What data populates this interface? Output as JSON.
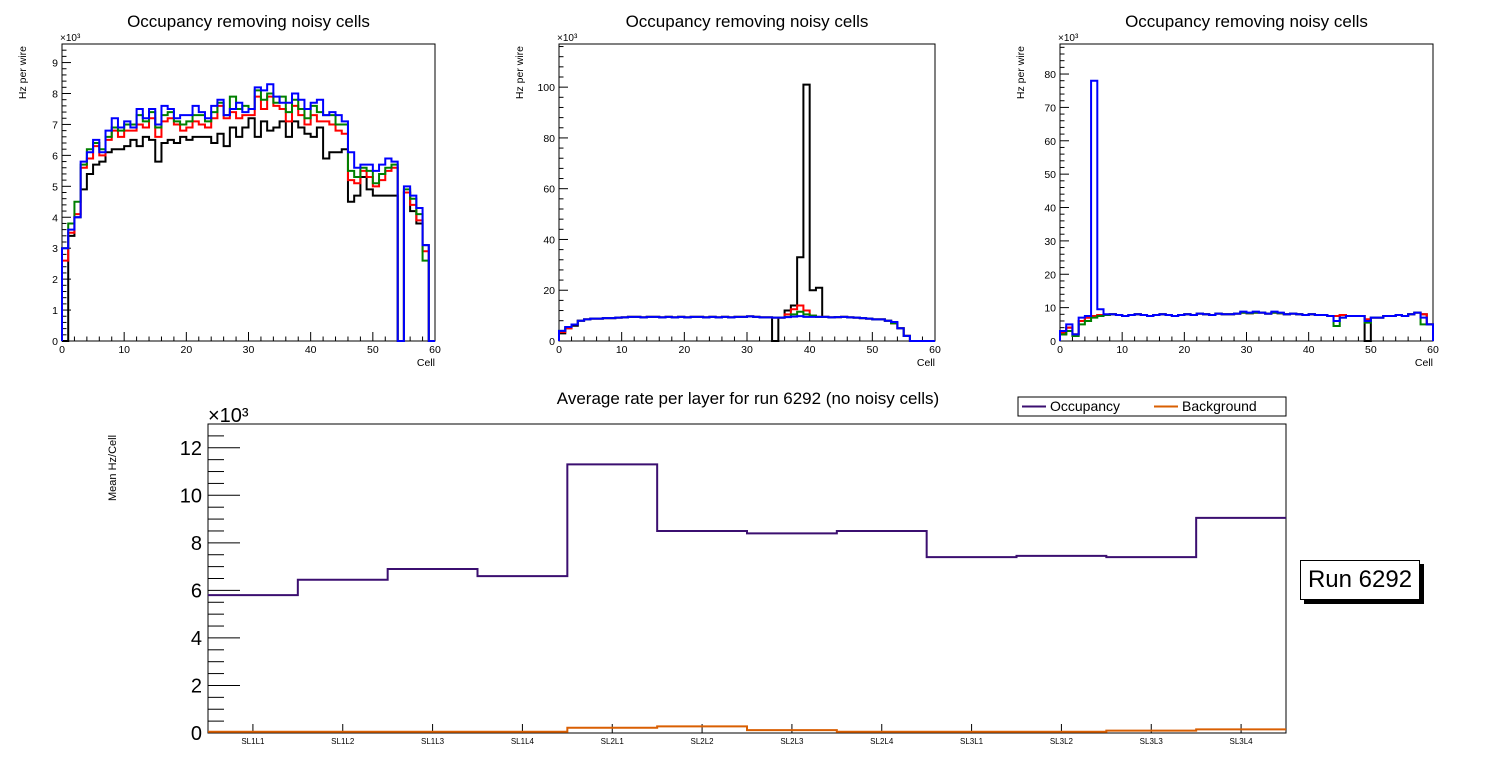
{
  "chart_data": [
    {
      "type": "step",
      "title": "Occupancy removing noisy cells",
      "xlabel": "Cell",
      "ylabel": "Hz per wire",
      "multiplier": "×10³",
      "xlim": [
        0,
        60
      ],
      "ylim": [
        0,
        9.6
      ],
      "xticks": [
        "0",
        "10",
        "20",
        "30",
        "40",
        "50",
        "60"
      ],
      "yticks": [
        "0",
        "1",
        "2",
        "3",
        "4",
        "5",
        "6",
        "7",
        "8",
        "9"
      ],
      "series": [
        {
          "name": "black",
          "color": "#000000",
          "values": [
            0,
            3.4,
            4,
            4.9,
            5.4,
            5.7,
            5.8,
            6.1,
            6.2,
            6.2,
            6.3,
            6.5,
            6.3,
            6.6,
            6.5,
            5.8,
            6.4,
            6.5,
            6.4,
            6.6,
            6.5,
            6.6,
            6.6,
            6.6,
            6.4,
            6.7,
            6.3,
            6.9,
            6.6,
            6.9,
            7.2,
            6.6,
            7.1,
            6.8,
            6.9,
            7.1,
            6.6,
            7.1,
            6.9,
            6.7,
            6.6,
            6.9,
            5.9,
            6.1,
            6.1,
            6.2,
            4.5,
            4.7,
            5.3,
            4.9,
            4.7,
            4.7,
            4.7,
            4.7,
            0,
            4.8,
            4.2,
            3.8,
            3.1,
            0
          ]
        },
        {
          "name": "red",
          "color": "#ff0000",
          "values": [
            2.6,
            3.5,
            4.1,
            5.6,
            5.9,
            6.3,
            6.0,
            6.5,
            6.8,
            6.6,
            6.8,
            6.8,
            7.0,
            6.9,
            7.2,
            6.6,
            7.1,
            7.2,
            7.0,
            6.8,
            6.9,
            7.1,
            7.0,
            6.9,
            7.2,
            7.6,
            7.2,
            7.4,
            7.2,
            7.3,
            7.3,
            7.9,
            7.5,
            7.9,
            7.6,
            7.5,
            7.1,
            7.6,
            7.3,
            7.0,
            7.3,
            7.1,
            7.1,
            7.0,
            6.8,
            6.7,
            5.2,
            5.1,
            5.5,
            5.3,
            5.0,
            5.2,
            5.5,
            5.6,
            0,
            4.8,
            4.4,
            3.9,
            2.9,
            0
          ]
        },
        {
          "name": "green",
          "color": "#008000",
          "values": [
            3.0,
            3.8,
            4.5,
            5.7,
            6.2,
            6.4,
            6.2,
            6.6,
            6.9,
            6.8,
            7.0,
            7.0,
            7.3,
            7.1,
            7.4,
            6.9,
            7.3,
            7.4,
            7.1,
            7.0,
            7.1,
            7.3,
            7.3,
            7.1,
            7.4,
            7.7,
            7.3,
            7.9,
            7.5,
            7.6,
            7.5,
            8.1,
            7.8,
            8.0,
            7.7,
            7.9,
            7.4,
            7.8,
            7.5,
            7.2,
            7.6,
            7.4,
            7.3,
            7.3,
            7.0,
            7.0,
            5.5,
            5.3,
            5.6,
            5.5,
            5.1,
            5.4,
            5.6,
            5.7,
            0,
            4.9,
            4.6,
            4.1,
            2.6,
            0
          ]
        },
        {
          "name": "blue",
          "color": "#0000ff",
          "values": [
            3.0,
            3.6,
            4.0,
            5.8,
            6.1,
            6.5,
            6.1,
            6.8,
            7.2,
            6.9,
            7.1,
            6.9,
            7.5,
            7.2,
            7.5,
            7.0,
            7.6,
            7.5,
            7.2,
            7.3,
            7.3,
            7.6,
            7.4,
            7.2,
            7.6,
            7.8,
            7.3,
            7.5,
            7.7,
            7.4,
            7.5,
            8.2,
            8.1,
            8.3,
            7.9,
            7.7,
            7.7,
            8.0,
            7.8,
            7.5,
            7.7,
            7.8,
            7.3,
            7.4,
            7.3,
            7.1,
            6.1,
            5.6,
            5.7,
            5.7,
            5.5,
            5.7,
            5.9,
            5.8,
            0,
            5.0,
            4.7,
            4.3,
            3.1,
            0
          ]
        }
      ]
    },
    {
      "type": "step",
      "title": "Occupancy removing noisy cells",
      "xlabel": "Cell",
      "ylabel": "Hz per wire",
      "multiplier": "×10³",
      "xlim": [
        0,
        60
      ],
      "ylim": [
        0,
        117
      ],
      "xticks": [
        "0",
        "10",
        "20",
        "30",
        "40",
        "50",
        "60"
      ],
      "yticks": [
        "0",
        "20",
        "40",
        "60",
        "80",
        "100"
      ],
      "series": [
        {
          "name": "black",
          "color": "#000000",
          "values": [
            3,
            5,
            6,
            8,
            8.5,
            8.8,
            8.8,
            9,
            9,
            9.2,
            9.3,
            9.5,
            9.5,
            9.3,
            9.5,
            9.5,
            9.3,
            9.5,
            9.3,
            9.5,
            9.3,
            9.5,
            9.5,
            9.3,
            9.5,
            9.3,
            9.5,
            9.3,
            9.5,
            9.5,
            9.7,
            9.5,
            9.3,
            9.3,
            0,
            9.2,
            12,
            14,
            33,
            101,
            20,
            21,
            9.5,
            9.3,
            9.4,
            9.5,
            9.3,
            9.2,
            9.0,
            8.8,
            8.5,
            8.5,
            8,
            7,
            5,
            2,
            0,
            0,
            0,
            0
          ]
        },
        {
          "name": "red",
          "color": "#ff0000",
          "values": [
            3.5,
            5,
            6.5,
            8,
            8.5,
            8.8,
            8.8,
            9,
            9,
            9.2,
            9.3,
            9.5,
            9.5,
            9.3,
            9.5,
            9.5,
            9.3,
            9.5,
            9.3,
            9.5,
            9.3,
            9.5,
            9.5,
            9.3,
            9.5,
            9.3,
            9.5,
            9.3,
            9.5,
            9.5,
            9.7,
            9.5,
            9.3,
            9.3,
            9.2,
            9.2,
            10.5,
            12.5,
            14,
            12,
            10,
            9.5,
            9.5,
            9.3,
            9.4,
            9.5,
            9.3,
            9.2,
            9.0,
            8.8,
            8.5,
            8.5,
            8,
            7,
            5,
            2,
            0,
            0,
            0,
            0
          ]
        },
        {
          "name": "green",
          "color": "#008000",
          "values": [
            4,
            5.5,
            6.5,
            8,
            8.5,
            8.8,
            8.8,
            9,
            9,
            9.2,
            9.3,
            9.5,
            9.5,
            9.3,
            9.5,
            9.5,
            9.3,
            9.5,
            9.3,
            9.5,
            9.3,
            9.5,
            9.5,
            9.3,
            9.5,
            9.3,
            9.5,
            9.3,
            9.5,
            9.5,
            9.7,
            9.5,
            9.3,
            9.3,
            9.2,
            9.2,
            9.5,
            10.5,
            11.5,
            10.5,
            10,
            9.5,
            9.5,
            9.3,
            9.4,
            9.5,
            9.3,
            9.2,
            9.0,
            8.8,
            8.5,
            8.5,
            8,
            7,
            5,
            2,
            0,
            0,
            0,
            0
          ]
        },
        {
          "name": "blue",
          "color": "#0000ff",
          "values": [
            4,
            5.5,
            6.5,
            8,
            8.5,
            8.8,
            8.8,
            9,
            9,
            9.2,
            9.3,
            9.5,
            9.5,
            9.3,
            9.5,
            9.5,
            9.3,
            9.5,
            9.3,
            9.5,
            9.3,
            9.5,
            9.5,
            9.3,
            9.5,
            9.3,
            9.5,
            9.3,
            9.5,
            9.5,
            9.7,
            9.5,
            9.3,
            9.3,
            9.2,
            9.2,
            9.4,
            9.6,
            9.8,
            9.5,
            9.5,
            9.5,
            9.5,
            9.3,
            9.4,
            9.5,
            9.3,
            9.2,
            9.0,
            8.8,
            8.5,
            8.5,
            8,
            7.5,
            5,
            2,
            0,
            0,
            0,
            0
          ]
        }
      ]
    },
    {
      "type": "step",
      "title": "Occupancy removing noisy cells",
      "xlabel": "Cell",
      "ylabel": "Hz per wire",
      "multiplier": "×10³",
      "xlim": [
        0,
        60
      ],
      "ylim": [
        0,
        89
      ],
      "xticks": [
        "0",
        "10",
        "20",
        "30",
        "40",
        "50",
        "60"
      ],
      "yticks": [
        "0",
        "10",
        "20",
        "30",
        "40",
        "50",
        "60",
        "70",
        "80"
      ],
      "series": [
        {
          "name": "black",
          "color": "#000000",
          "values": [
            2,
            4,
            2,
            6,
            7,
            7.5,
            7.8,
            7.8,
            8,
            7.8,
            7.5,
            7.8,
            8,
            7.8,
            7.5,
            7.8,
            8,
            7.8,
            7.5,
            7.8,
            8,
            7.8,
            8.2,
            8,
            7.8,
            8.2,
            8,
            8,
            8.2,
            8.5,
            8.3,
            8.5,
            8.5,
            8.2,
            8.5,
            8.3,
            8,
            8.2,
            8,
            7.8,
            8,
            7.8,
            7.8,
            7.5,
            7.5,
            7.8,
            7.5,
            7.5,
            7.5,
            0,
            7,
            7,
            7.5,
            7.5,
            7.8,
            7.5,
            8,
            8.5,
            8,
            5
          ]
        },
        {
          "name": "red",
          "color": "#ff0000",
          "values": [
            2.5,
            4,
            2,
            6,
            7,
            7.5,
            7.8,
            7.8,
            8,
            7.8,
            7.5,
            7.8,
            8,
            7.8,
            7.5,
            7.8,
            8,
            7.8,
            7.5,
            7.8,
            8,
            7.8,
            8.2,
            8,
            7.8,
            8.2,
            8,
            8,
            8.2,
            8.5,
            8.3,
            8.5,
            8.5,
            8.2,
            8.5,
            8.3,
            8,
            8.2,
            8,
            7.8,
            8,
            7.8,
            7.8,
            7.5,
            7.5,
            7.8,
            7.5,
            7.5,
            7.5,
            6.5,
            7,
            7,
            7.5,
            7.5,
            7.8,
            7.5,
            8,
            8.5,
            8,
            5
          ]
        },
        {
          "name": "green",
          "color": "#008000",
          "values": [
            2,
            3,
            1.5,
            5,
            6,
            7,
            7.5,
            7.8,
            8,
            7.8,
            7.5,
            7.8,
            8,
            7.8,
            7.5,
            7.8,
            8,
            7.8,
            7.5,
            7.8,
            8,
            7.8,
            8.2,
            8,
            7.8,
            8.2,
            8,
            8,
            8.2,
            8.5,
            8.3,
            8.5,
            8.5,
            8.2,
            8.5,
            8.3,
            8,
            8.2,
            8,
            7.8,
            8,
            7.8,
            7.8,
            7.5,
            4.5,
            7,
            7.5,
            7.5,
            7.5,
            5.5,
            7,
            7,
            7.5,
            7.5,
            7.8,
            7.5,
            8,
            8.5,
            5,
            5
          ]
        },
        {
          "name": "blue",
          "color": "#0000ff",
          "values": [
            3,
            5,
            2,
            7,
            7.5,
            78,
            9.5,
            8,
            8,
            7.8,
            7.5,
            7.8,
            8,
            7.8,
            7.5,
            7.8,
            8,
            7.8,
            7.5,
            7.8,
            8,
            7.8,
            8.2,
            8,
            7.8,
            8.2,
            8,
            8,
            8.2,
            8.8,
            8.5,
            8.8,
            8.5,
            8.2,
            8.8,
            8.5,
            8,
            8.2,
            8,
            7.8,
            8,
            7.8,
            7.8,
            7.5,
            6,
            7,
            7.5,
            7.5,
            7.5,
            6,
            7,
            7,
            7.5,
            7.5,
            7.8,
            7.5,
            8,
            8.5,
            7,
            5
          ]
        }
      ]
    },
    {
      "type": "step",
      "title": "Average rate per layer for run 6292 (no noisy cells)",
      "xlabel": "",
      "ylabel": "Mean Hz/Cell",
      "multiplier": "×10³",
      "ylim": [
        0,
        13
      ],
      "categories": [
        "SL1L1",
        "SL1L2",
        "SL1L3",
        "SL1L4",
        "SL2L1",
        "SL2L2",
        "SL2L3",
        "SL2L4",
        "SL3L1",
        "SL3L2",
        "SL3L3",
        "SL3L4"
      ],
      "yticks": [
        "0",
        "2",
        "4",
        "6",
        "8",
        "10",
        "12"
      ],
      "series": [
        {
          "name": "Occupancy",
          "color": "#3b0f70",
          "values": [
            5.8,
            6.45,
            6.9,
            6.6,
            11.3,
            8.5,
            8.4,
            8.5,
            7.4,
            7.45,
            7.4,
            9.05
          ]
        },
        {
          "name": "Background",
          "color": "#d95f02",
          "values": [
            0.05,
            0.05,
            0.05,
            0.05,
            0.22,
            0.28,
            0.12,
            0.05,
            0.05,
            0.05,
            0.1,
            0.15
          ]
        }
      ],
      "legend": [
        "Occupancy",
        "Background"
      ]
    }
  ],
  "run_label": "Run 6292"
}
